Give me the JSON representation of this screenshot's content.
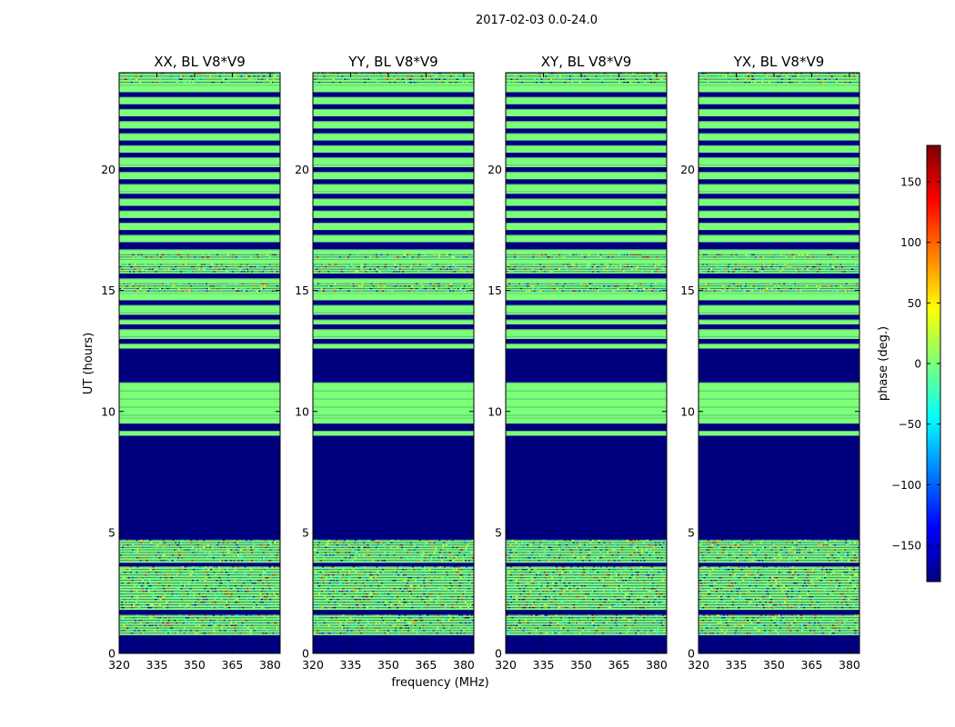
{
  "figure_title": "2017-02-03 0.0-24.0",
  "chart_data": {
    "type": "heatmap",
    "title": "2017-02-03 0.0-24.0",
    "xlabel": "frequency (MHz)",
    "ylabel": "UT (hours)",
    "xlim": [
      320,
      384
    ],
    "ylim": [
      0,
      24
    ],
    "xticks": [
      320,
      335,
      350,
      365,
      380
    ],
    "yticks": [
      0,
      5,
      10,
      15,
      20
    ],
    "panels": [
      {
        "title": "XX, BL V8*V9",
        "polarization": "XX",
        "baseline": "V8*V9"
      },
      {
        "title": "YY, BL V8*V9",
        "polarization": "YY",
        "baseline": "V8*V9"
      },
      {
        "title": "XY, BL V8*V9",
        "polarization": "XY",
        "baseline": "V8*V9"
      },
      {
        "title": "YX, BL V8*V9",
        "polarization": "YX",
        "baseline": "V8*V9"
      }
    ],
    "bands": [
      {
        "t0": 0.0,
        "t1": 0.75,
        "state": "flagged"
      },
      {
        "t0": 0.75,
        "t1": 1.6,
        "state": "noisy"
      },
      {
        "t0": 1.6,
        "t1": 1.8,
        "state": "flagged"
      },
      {
        "t0": 1.8,
        "t1": 2.7,
        "state": "noisy"
      },
      {
        "t0": 2.7,
        "t1": 3.6,
        "state": "noisy"
      },
      {
        "t0": 3.6,
        "t1": 3.75,
        "state": "flagged"
      },
      {
        "t0": 3.75,
        "t1": 4.3,
        "state": "noisy"
      },
      {
        "t0": 4.3,
        "t1": 4.7,
        "state": "noisy"
      },
      {
        "t0": 4.7,
        "t1": 9.0,
        "state": "flagged"
      },
      {
        "t0": 9.0,
        "t1": 9.2,
        "state": "zero"
      },
      {
        "t0": 9.2,
        "t1": 9.5,
        "state": "flagged"
      },
      {
        "t0": 9.5,
        "t1": 9.75,
        "state": "zero"
      },
      {
        "t0": 9.75,
        "t1": 11.2,
        "state": "zero"
      },
      {
        "t0": 11.2,
        "t1": 12.6,
        "state": "flagged"
      },
      {
        "t0": 12.6,
        "t1": 12.8,
        "state": "zero"
      },
      {
        "t0": 12.8,
        "t1": 13.0,
        "state": "flagged"
      },
      {
        "t0": 13.0,
        "t1": 13.4,
        "state": "zero"
      },
      {
        "t0": 13.4,
        "t1": 13.6,
        "state": "flagged"
      },
      {
        "t0": 13.6,
        "t1": 13.8,
        "state": "zero"
      },
      {
        "t0": 13.8,
        "t1": 14.0,
        "state": "flagged"
      },
      {
        "t0": 14.0,
        "t1": 14.4,
        "state": "zero"
      },
      {
        "t0": 14.4,
        "t1": 14.6,
        "state": "flagged"
      },
      {
        "t0": 14.6,
        "t1": 14.9,
        "state": "zero"
      },
      {
        "t0": 14.9,
        "t1": 15.3,
        "state": "noisy"
      },
      {
        "t0": 15.3,
        "t1": 15.5,
        "state": "zero"
      },
      {
        "t0": 15.5,
        "t1": 15.7,
        "state": "flagged"
      },
      {
        "t0": 15.7,
        "t1": 16.1,
        "state": "noisy"
      },
      {
        "t0": 16.1,
        "t1": 16.3,
        "state": "zero"
      },
      {
        "t0": 16.3,
        "t1": 16.5,
        "state": "noisy"
      },
      {
        "t0": 16.5,
        "t1": 16.7,
        "state": "zero"
      },
      {
        "t0": 16.7,
        "t1": 17.0,
        "state": "flagged"
      },
      {
        "t0": 17.0,
        "t1": 17.3,
        "state": "zero"
      },
      {
        "t0": 17.3,
        "t1": 17.5,
        "state": "flagged"
      },
      {
        "t0": 17.5,
        "t1": 17.8,
        "state": "zero"
      },
      {
        "t0": 17.8,
        "t1": 18.0,
        "state": "flagged"
      },
      {
        "t0": 18.0,
        "t1": 18.3,
        "state": "zero"
      },
      {
        "t0": 18.3,
        "t1": 18.5,
        "state": "flagged"
      },
      {
        "t0": 18.5,
        "t1": 18.8,
        "state": "zero"
      },
      {
        "t0": 18.8,
        "t1": 19.0,
        "state": "flagged"
      },
      {
        "t0": 19.0,
        "t1": 19.4,
        "state": "zero"
      },
      {
        "t0": 19.4,
        "t1": 19.6,
        "state": "flagged"
      },
      {
        "t0": 19.6,
        "t1": 19.9,
        "state": "zero"
      },
      {
        "t0": 19.9,
        "t1": 20.1,
        "state": "flagged"
      },
      {
        "t0": 20.1,
        "t1": 20.5,
        "state": "zero"
      },
      {
        "t0": 20.5,
        "t1": 20.7,
        "state": "flagged"
      },
      {
        "t0": 20.7,
        "t1": 21.0,
        "state": "zero"
      },
      {
        "t0": 21.0,
        "t1": 21.2,
        "state": "flagged"
      },
      {
        "t0": 21.2,
        "t1": 21.5,
        "state": "zero"
      },
      {
        "t0": 21.5,
        "t1": 21.7,
        "state": "flagged"
      },
      {
        "t0": 21.7,
        "t1": 22.0,
        "state": "zero"
      },
      {
        "t0": 22.0,
        "t1": 22.2,
        "state": "flagged"
      },
      {
        "t0": 22.2,
        "t1": 22.5,
        "state": "zero"
      },
      {
        "t0": 22.5,
        "t1": 22.7,
        "state": "flagged"
      },
      {
        "t0": 22.7,
        "t1": 23.0,
        "state": "zero"
      },
      {
        "t0": 23.0,
        "t1": 23.2,
        "state": "flagged"
      },
      {
        "t0": 23.2,
        "t1": 23.5,
        "state": "zero"
      },
      {
        "t0": 23.5,
        "t1": 24.0,
        "state": "noisy"
      }
    ],
    "colorbar": {
      "label": "phase (deg.)",
      "colormap": "jet",
      "range": [
        -180,
        180
      ],
      "ticks": [
        -150,
        -100,
        -50,
        0,
        50,
        100,
        150
      ],
      "tick_labels": [
        "−150",
        "−100",
        "−50",
        "0",
        "50",
        "100",
        "150"
      ]
    }
  },
  "colors": {
    "flagged": "#00007f",
    "zero": "#7cff79",
    "jet": [
      "#00007f",
      "#0000ff",
      "#007fff",
      "#00ffff",
      "#7cff79",
      "#ffff00",
      "#ff7f00",
      "#ff0000",
      "#7f0000"
    ]
  }
}
